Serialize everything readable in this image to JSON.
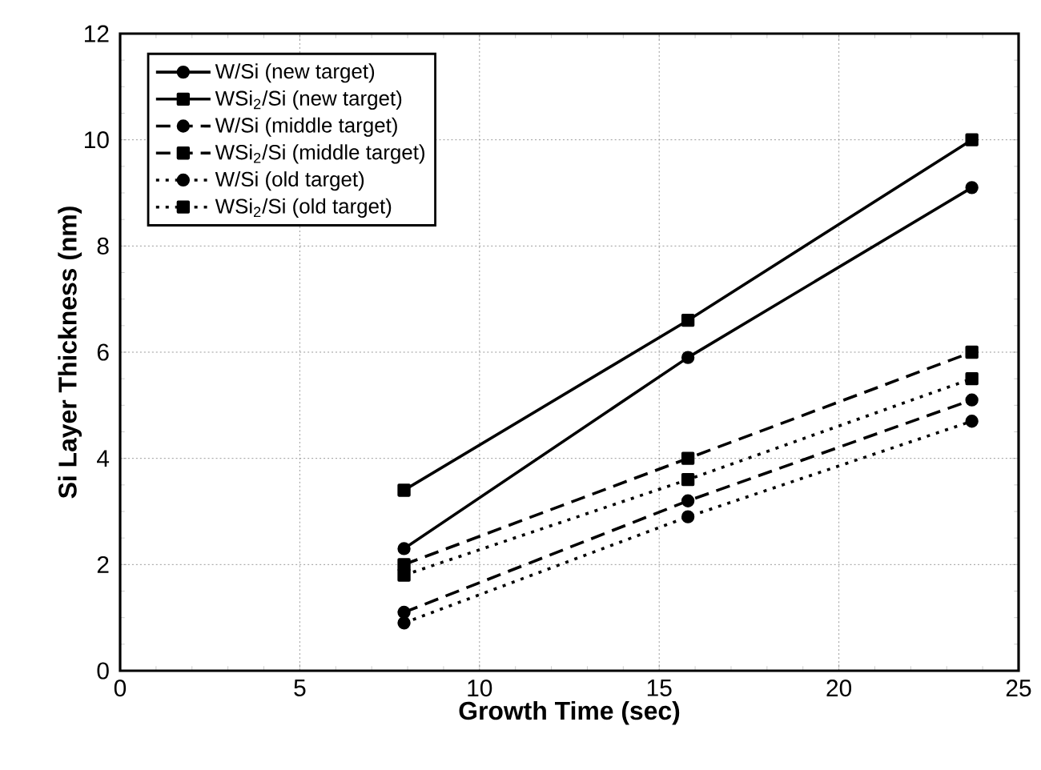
{
  "chart_data": {
    "type": "line",
    "xlabel": "Growth Time (sec)",
    "ylabel": "Si Layer Thickness (nm)",
    "xlim": [
      0,
      25
    ],
    "ylim": [
      0,
      12
    ],
    "xticks": [
      0,
      5,
      10,
      15,
      20,
      25
    ],
    "yticks": [
      0,
      2,
      4,
      6,
      8,
      10,
      12
    ],
    "grid": true,
    "legend": "top left",
    "x": [
      7.9,
      15.8,
      23.7
    ],
    "series": [
      {
        "name": "W/Si (new target)",
        "color": "#000000",
        "marker": "circle",
        "line_style": "solid",
        "values": [
          2.3,
          5.9,
          9.1
        ]
      },
      {
        "name": "WSi$_{2}$/Si (new target)",
        "color": "#000000",
        "marker": "square",
        "line_style": "solid",
        "values": [
          3.4,
          6.6,
          10.0
        ]
      },
      {
        "name": "W/Si (middle target)",
        "color": "#000000",
        "marker": "circle",
        "line_style": "dashed",
        "values": [
          1.1,
          3.2,
          5.1
        ]
      },
      {
        "name": "WSi$_{2}$/Si (middle target)",
        "color": "#000000",
        "marker": "square",
        "line_style": "dashed",
        "values": [
          2.0,
          4.0,
          6.0
        ]
      },
      {
        "name": "W/Si (old target)",
        "color": "#000000",
        "marker": "circle",
        "line_style": "dotted",
        "values": [
          0.9,
          2.9,
          4.7
        ]
      },
      {
        "name": "WSi$_{2}$/Si (old target)",
        "color": "#000000",
        "marker": "square",
        "line_style": "dotted",
        "values": [
          1.8,
          3.6,
          5.5
        ]
      }
    ]
  }
}
